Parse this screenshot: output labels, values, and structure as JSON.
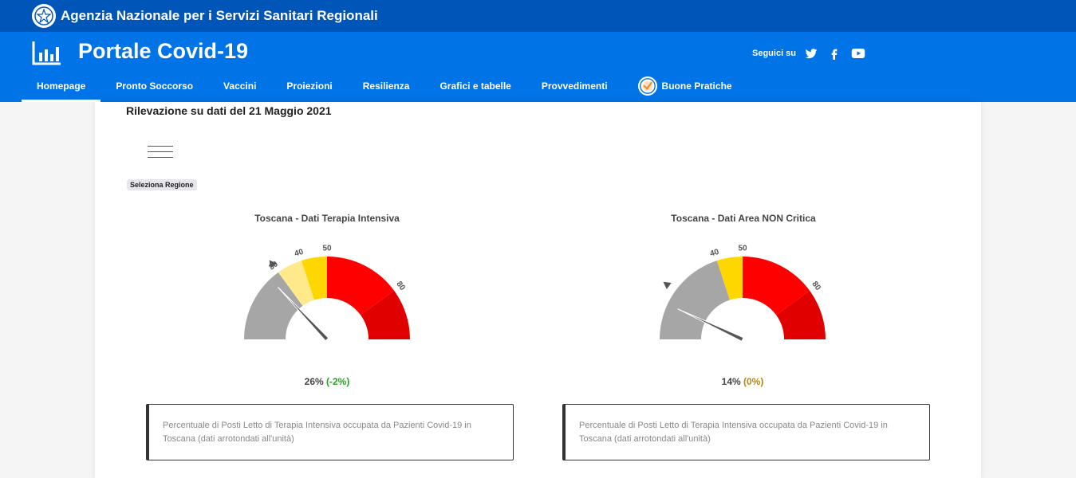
{
  "agency": {
    "title": "Agenzia Nazionale per i Servizi Sanitari Regionali",
    "emblem_icon": "italian-republic-emblem-icon"
  },
  "portal": {
    "title": "Portale Covid-19",
    "logo_icon": "bar-chart-icon"
  },
  "social": {
    "label": "Seguici su",
    "icons": [
      "twitter-icon",
      "facebook-icon",
      "youtube-icon"
    ]
  },
  "nav": {
    "items": [
      {
        "label": "Homepage",
        "active": true
      },
      {
        "label": "Pronto Soccorso"
      },
      {
        "label": "Vaccini"
      },
      {
        "label": "Proiezioni"
      },
      {
        "label": "Resilienza"
      },
      {
        "label": "Grafici e tabelle"
      },
      {
        "label": "Provvedimenti"
      },
      {
        "label": "Buone Pratiche",
        "icon": "check-badge-icon"
      }
    ]
  },
  "main": {
    "survey_date": "Rilevazione su dati del 21 Maggio 2021",
    "menu_icon": "hamburger-menu-icon",
    "region_select": "Seleziona Regione"
  },
  "gauges": [
    {
      "title": "Toscana - Dati Terapia Intensiva",
      "value_pct": 26,
      "value_text": "26%",
      "delta_text": "(-2%)",
      "threshold_marker": 30,
      "tick_labels": [
        "30",
        "40",
        "50",
        "80"
      ],
      "bands": [
        {
          "from": 0,
          "to": 30,
          "color": "#a6a6a6"
        },
        {
          "from": 30,
          "to": 40,
          "color": "#ffe98a"
        },
        {
          "from": 40,
          "to": 50,
          "color": "#ffd700"
        },
        {
          "from": 50,
          "to": 80,
          "color": "#ff0000"
        },
        {
          "from": 80,
          "to": 100,
          "color": "#e00000"
        }
      ],
      "description": "Percentuale di Posti Letto di Terapia Intensiva occupata da Pazienti Covid-19 in Toscana (dati arrotondati all'unità)"
    },
    {
      "title": "Toscana - Dati Area NON Critica",
      "value_pct": 14,
      "value_text": "14%",
      "delta_text": "(0%)",
      "threshold_marker": 20,
      "tick_labels": [
        "40",
        "50",
        "80"
      ],
      "bands": [
        {
          "from": 0,
          "to": 40,
          "color": "#a6a6a6"
        },
        {
          "from": 40,
          "to": 50,
          "color": "#ffd700"
        },
        {
          "from": 50,
          "to": 80,
          "color": "#ff0000"
        },
        {
          "from": 80,
          "to": 100,
          "color": "#e00000"
        }
      ],
      "description": "Percentuale di Posti Letto di Terapia Intensiva occupata da Pazienti Covid-19 in Toscana (dati arrotondati all'unità)"
    }
  ]
}
